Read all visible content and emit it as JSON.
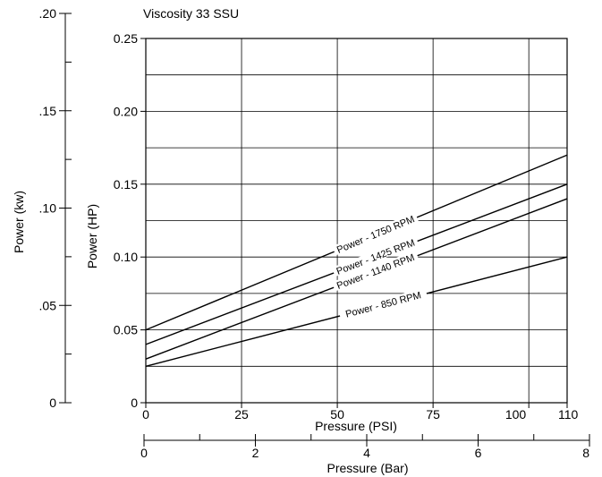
{
  "chart_data": {
    "type": "line",
    "title": "Viscosity 33 SSU",
    "xlabel": "Pressure (PSI)",
    "ylabel": "Power (HP)",
    "xlim": [
      0,
      110
    ],
    "ylim": [
      0,
      0.25
    ],
    "grid": true,
    "x_ticks": [
      {
        "value": 0,
        "label": "0"
      },
      {
        "value": 25,
        "label": "25"
      },
      {
        "value": 50,
        "label": "50"
      },
      {
        "value": 75,
        "label": "75"
      },
      {
        "value": 100,
        "label": "100"
      },
      {
        "value": 110,
        "label": "110"
      }
    ],
    "y_ticks": [
      {
        "value": 0,
        "label": "0"
      },
      {
        "value": 0.05,
        "label": "0.05"
      },
      {
        "value": 0.1,
        "label": "0.10"
      },
      {
        "value": 0.15,
        "label": "0.15"
      },
      {
        "value": 0.2,
        "label": "0.20"
      },
      {
        "value": 0.25,
        "label": "0.25"
      }
    ],
    "series": [
      {
        "name": "Power - 1750 RPM",
        "x": [
          0,
          110
        ],
        "y": [
          0.05,
          0.17
        ],
        "label_at_x": 60
      },
      {
        "name": "Power - 1425 RPM",
        "x": [
          0,
          110
        ],
        "y": [
          0.04,
          0.15
        ],
        "label_at_x": 60
      },
      {
        "name": "Power - 1140 RPM",
        "x": [
          0,
          110
        ],
        "y": [
          0.03,
          0.14
        ],
        "label_at_x": 60
      },
      {
        "name": "Power - 850 RPM",
        "x": [
          0,
          110
        ],
        "y": [
          0.025,
          0.1
        ],
        "label_at_x": 62
      }
    ],
    "secondary_y": {
      "label": "Power (kw)",
      "range": [
        0,
        0.2
      ],
      "ticks": [
        {
          "value": 0,
          "label": "0"
        },
        {
          "value": 0.05,
          "label": ".05"
        },
        {
          "value": 0.1,
          "label": ".10"
        },
        {
          "value": 0.15,
          "label": ".15"
        },
        {
          "value": 0.2,
          "label": ".20"
        }
      ],
      "minor_ticks": [
        0.025,
        0.075,
        0.125,
        0.175
      ]
    },
    "secondary_x": {
      "label": "Pressure (Bar)",
      "range": [
        0,
        8
      ],
      "ticks": [
        {
          "value": 0,
          "label": "0"
        },
        {
          "value": 2,
          "label": "2"
        },
        {
          "value": 4,
          "label": "4"
        },
        {
          "value": 6,
          "label": "6"
        },
        {
          "value": 8,
          "label": "8"
        }
      ],
      "minor_ticks": [
        1,
        3,
        5,
        7
      ]
    }
  }
}
